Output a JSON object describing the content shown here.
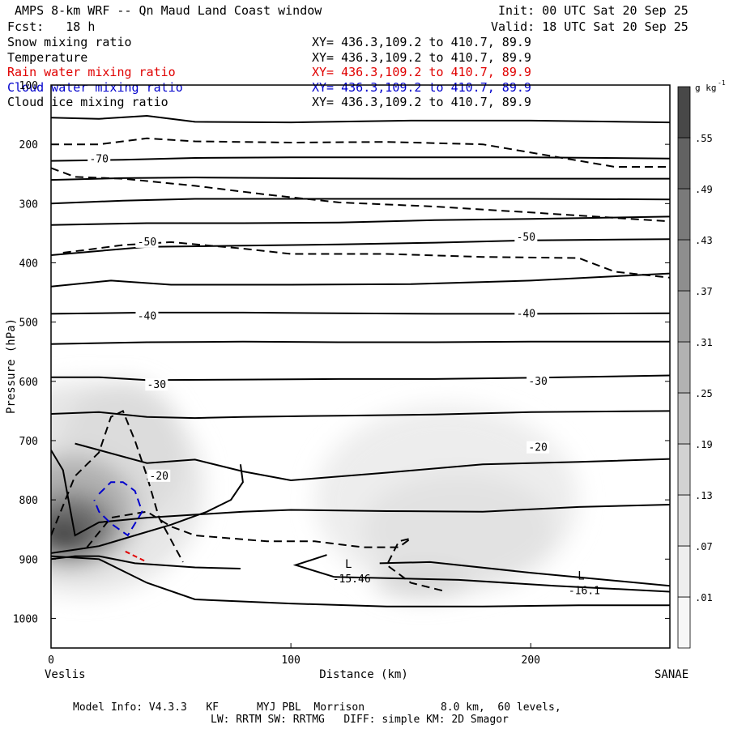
{
  "header": {
    "title": "AMPS 8-km WRF -- Qn Maud Land Coast window",
    "init": "Init: 00 UTC Sat 20 Sep 25",
    "fcst": "Fcst:   18 h",
    "valid": "Valid: 18 UTC Sat 20 Sep 25"
  },
  "legend_rows": [
    {
      "name": "Snow mixing ratio",
      "xy": "XY= 436.3,109.2 to 410.7, 89.9",
      "color": "#000000"
    },
    {
      "name": "Temperature",
      "xy": "XY= 436.3,109.2 to 410.7, 89.9",
      "color": "#000000"
    },
    {
      "name": "Rain water mixing ratio",
      "xy": "XY= 436.3,109.2 to 410.7, 89.9",
      "color": "#e00000"
    },
    {
      "name": "Cloud water mixing ratio",
      "xy": "XY= 436.3,109.2 to 410.7, 89.9",
      "color": "#0000cc"
    },
    {
      "name": "Cloud ice mixing ratio",
      "xy": "XY= 436.3,109.2 to 410.7, 89.9",
      "color": "#000000"
    }
  ],
  "footer": {
    "line1": "Model Info: V4.3.3   KF      MYJ PBL  Morrison            8.0 km,  60 levels,",
    "line2": "LW: RRTM SW: RRTMG   DIFF: simple KM: 2D Smagor"
  },
  "chart_data": {
    "type": "cross-section",
    "xlabel": "Distance (km)",
    "ylabel": "Pressure (hPa)",
    "xlim": [
      0,
      258
    ],
    "ylim": [
      1050,
      100
    ],
    "x_ticks": [
      0,
      100,
      200
    ],
    "y_ticks": [
      100,
      200,
      300,
      400,
      500,
      600,
      700,
      800,
      900,
      1000
    ],
    "left_endpoint": "Veslis",
    "right_endpoint": "SANAE",
    "colorbar": {
      "unit": "g kg",
      "unit_exp": "-1",
      "levels": [
        ".01",
        ".07",
        ".13",
        ".19",
        ".25",
        ".31",
        ".37",
        ".43",
        ".49",
        ".55"
      ]
    },
    "temperature_labels": [
      {
        "text": "-70",
        "x": 20,
        "p": 225
      },
      {
        "text": "-50",
        "x": 40,
        "p": 365
      },
      {
        "text": "-50",
        "x": 198,
        "p": 357
      },
      {
        "text": "-40",
        "x": 40,
        "p": 490
      },
      {
        "text": "-40",
        "x": 198,
        "p": 486
      },
      {
        "text": "-30",
        "x": 44,
        "p": 606
      },
      {
        "text": "-30",
        "x": 203,
        "p": 600
      },
      {
        "text": "-20",
        "x": 45,
        "p": 760
      },
      {
        "text": "-20",
        "x": 203,
        "p": 712
      }
    ],
    "lows": [
      {
        "label": "L",
        "value": "-15.46",
        "x": 124,
        "p": 920
      },
      {
        "label": "L",
        "value": "-16.1",
        "x": 221,
        "p": 940
      }
    ],
    "temperature_isotherms": [
      {
        "name": "p155",
        "x": [
          0,
          20,
          40,
          60,
          100,
          150,
          200,
          258
        ],
        "p": [
          155,
          157,
          152,
          162,
          163,
          160,
          160,
          163
        ]
      },
      {
        "name": "p220",
        "x": [
          0,
          30,
          60,
          100,
          150,
          200,
          258
        ],
        "p": [
          228,
          226,
          223,
          222,
          222,
          222,
          224
        ]
      },
      {
        "name": "p255",
        "x": [
          0,
          30,
          60,
          100,
          150,
          200,
          258
        ],
        "p": [
          260,
          257,
          256,
          257,
          258,
          258,
          258
        ]
      },
      {
        "name": "p295",
        "x": [
          0,
          30,
          60,
          100,
          150,
          200,
          258
        ],
        "p": [
          300,
          295,
          292,
          292,
          292,
          292,
          293
        ]
      },
      {
        "name": "p330",
        "x": [
          0,
          40,
          80,
          120,
          160,
          200,
          258
        ],
        "p": [
          336,
          333,
          333,
          332,
          328,
          326,
          322
        ]
      },
      {
        "name": "p380",
        "x": [
          0,
          40,
          80,
          120,
          160,
          200,
          258
        ],
        "p": [
          387,
          373,
          371,
          369,
          366,
          362,
          360
        ]
      },
      {
        "name": "p430",
        "x": [
          0,
          25,
          50,
          100,
          150,
          200,
          258
        ],
        "p": [
          440,
          430,
          437,
          437,
          436,
          430,
          418
        ]
      },
      {
        "name": "p485",
        "x": [
          0,
          40,
          80,
          120,
          160,
          200,
          258
        ],
        "p": [
          486,
          484,
          484,
          485,
          486,
          486,
          485
        ]
      },
      {
        "name": "p535",
        "x": [
          0,
          40,
          80,
          120,
          160,
          200,
          258
        ],
        "p": [
          537,
          534,
          533,
          534,
          534,
          533,
          533
        ]
      },
      {
        "name": "p592",
        "x": [
          0,
          20,
          40,
          80,
          120,
          160,
          200,
          258
        ],
        "p": [
          593,
          593,
          598,
          597,
          596,
          596,
          594,
          590
        ]
      },
      {
        "name": "p650",
        "x": [
          0,
          20,
          40,
          60,
          80,
          120,
          160,
          200,
          258
        ],
        "p": [
          655,
          652,
          660,
          662,
          660,
          658,
          656,
          652,
          650
        ]
      },
      {
        "name": "p720",
        "x": [
          10,
          40,
          60,
          80,
          100,
          140,
          180,
          220,
          258
        ],
        "p": [
          705,
          738,
          732,
          752,
          767,
          754,
          740,
          736,
          731
        ]
      },
      {
        "name": "p810",
        "x": [
          0,
          5,
          10,
          20,
          40,
          60,
          80,
          100,
          140,
          180,
          220,
          258
        ],
        "p": [
          716,
          750,
          860,
          838,
          830,
          825,
          820,
          817,
          819,
          820,
          812,
          808
        ]
      },
      {
        "name": "p880",
        "x": [
          0,
          10,
          20,
          35,
          50,
          65,
          75,
          80,
          79
        ],
        "p": [
          890,
          884,
          878,
          860,
          842,
          820,
          800,
          770,
          740
        ]
      },
      {
        "name": "p910",
        "x": [
          0,
          10,
          20,
          35,
          60,
          79
        ],
        "p": [
          900,
          895,
          895,
          907,
          914,
          916
        ]
      },
      {
        "name": "p960",
        "x": [
          0,
          20,
          40,
          60,
          100,
          140,
          180,
          220,
          258
        ],
        "p": [
          895,
          900,
          940,
          968,
          975,
          980,
          980,
          978,
          978
        ]
      },
      {
        "name": "p930",
        "x": [
          137,
          158,
          200,
          258
        ],
        "p": [
          907,
          905,
          923,
          945
        ]
      },
      {
        "name": "L1",
        "x": [
          115,
          102,
          118
        ],
        "p": [
          893,
          910,
          930
        ]
      },
      {
        "name": "p945",
        "x": [
          118,
          170,
          210,
          258
        ],
        "p": [
          930,
          935,
          945,
          955
        ]
      }
    ],
    "snow_dashed": [
      {
        "name": "s200",
        "x": [
          0,
          20,
          40,
          60,
          100,
          140,
          180,
          235,
          258
        ],
        "p": [
          200,
          200,
          190,
          195,
          197,
          196,
          200,
          238,
          238
        ]
      },
      {
        "name": "s270",
        "x": [
          0,
          10,
          30,
          60,
          90,
          120,
          160,
          200,
          258
        ],
        "p": [
          240,
          255,
          258,
          270,
          285,
          298,
          305,
          315,
          330
        ]
      },
      {
        "name": "s380",
        "x": [
          5,
          15,
          30,
          50,
          80,
          100,
          140,
          180,
          220,
          235,
          258
        ],
        "p": [
          383,
          378,
          370,
          365,
          376,
          385,
          385,
          390,
          392,
          415,
          425
        ]
      },
      {
        "name": "s700",
        "x": [
          0,
          10,
          20,
          25,
          30,
          35,
          40,
          45,
          55
        ],
        "p": [
          860,
          760,
          720,
          660,
          650,
          700,
          760,
          830,
          905
        ]
      },
      {
        "name": "s820",
        "x": [
          15,
          25,
          40,
          50,
          60,
          90,
          110,
          130,
          145,
          150,
          145,
          140,
          150,
          165
        ],
        "p": [
          880,
          830,
          820,
          845,
          860,
          870,
          870,
          880,
          880,
          865,
          870,
          910,
          940,
          955
        ]
      }
    ],
    "cloud_water_dashed": [
      {
        "name": "cw",
        "x": [
          20,
          25,
          30,
          35,
          38,
          32,
          25,
          20,
          18
        ],
        "p": [
          790,
          770,
          770,
          785,
          820,
          860,
          840,
          820,
          800
        ]
      }
    ],
    "rain_water_dashed": [
      {
        "name": "rw",
        "x": [
          31,
          35,
          40
        ],
        "p": [
          887,
          895,
          905
        ]
      }
    ]
  }
}
